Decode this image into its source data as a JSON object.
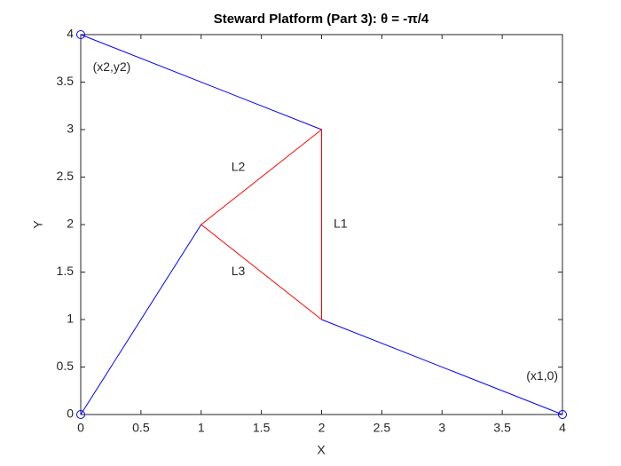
{
  "chart_data": {
    "type": "line",
    "title": "Steward Platform (Part 3):  θ = -π/4",
    "xlabel": "X",
    "ylabel": "Y",
    "xlim": [
      0,
      4
    ],
    "ylim": [
      0,
      4
    ],
    "xticks": [
      0,
      0.5,
      1,
      1.5,
      2,
      2.5,
      3,
      3.5,
      4
    ],
    "yticks": [
      0,
      0.5,
      1,
      1.5,
      2,
      2.5,
      3,
      3.5,
      4
    ],
    "series": [
      {
        "color": "#0000ff",
        "x": [
          0,
          1
        ],
        "values": [
          0,
          2
        ]
      },
      {
        "color": "#0000ff",
        "x": [
          4,
          2
        ],
        "values": [
          0,
          1
        ]
      },
      {
        "color": "#0000ff",
        "x": [
          0,
          2
        ],
        "values": [
          4,
          3
        ]
      },
      {
        "color": "#ff0000",
        "x": [
          2,
          2,
          1,
          2
        ],
        "values": [
          1,
          3,
          2,
          1
        ]
      },
      {
        "color": "#0000ff",
        "x": [
          0,
          4,
          0
        ],
        "values": [
          0,
          0,
          4
        ],
        "marker": "o",
        "linestyle": "none"
      }
    ],
    "annotations": [
      {
        "text": "L1",
        "x": 2.1,
        "y": 2
      },
      {
        "text": "L2",
        "x": 1.25,
        "y": 2.6
      },
      {
        "text": "L3",
        "x": 1.25,
        "y": 1.5
      },
      {
        "text": "(x2,y2)",
        "x": 0.1,
        "y": 3.65
      },
      {
        "text": "(x1,0)",
        "x": 3.7,
        "y": 0.4
      }
    ]
  }
}
